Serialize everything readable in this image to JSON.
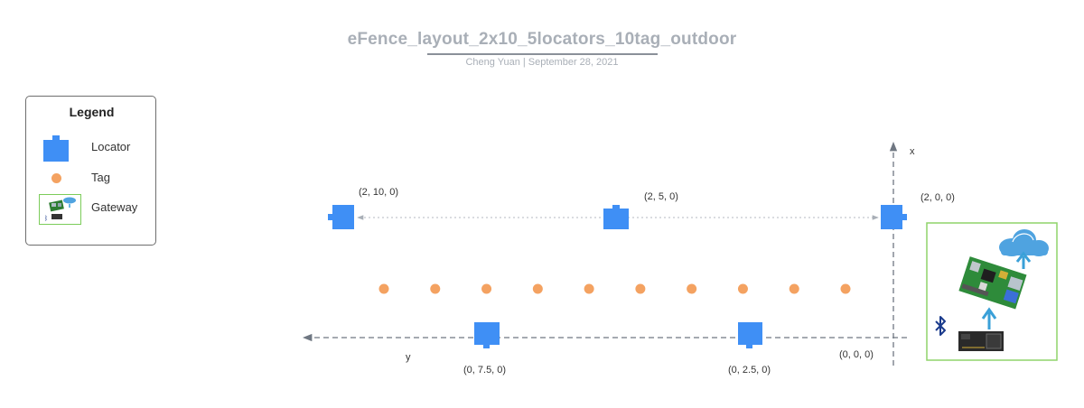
{
  "title": "eFence_layout_2x10_5locators_10tag_outdoor",
  "subtitle": "Cheng Yuan  |  September 28, 2021",
  "legend": {
    "title": "Legend",
    "items": [
      {
        "label": "Locator",
        "icon": "locator-icon"
      },
      {
        "label": "Tag",
        "icon": "tag-icon"
      },
      {
        "label": "Gateway",
        "icon": "gateway-icon"
      }
    ]
  },
  "axes": {
    "x_label": "x",
    "y_label": "y"
  },
  "locators": [
    {
      "coord": "(2, 10, 0)"
    },
    {
      "coord": "(2, 5, 0)"
    },
    {
      "coord": "(2, 0, 0)"
    },
    {
      "coord": "(0, 7.5, 0)"
    },
    {
      "coord": "(0, 2.5, 0)"
    }
  ],
  "origin": {
    "coord": "(0, 0, 0)"
  },
  "tags_count": 10,
  "colors": {
    "locator": "#3f8ff5",
    "tag": "#f4a261",
    "gateway_border": "#7ccc5a",
    "arrow": "#3aa0d8",
    "bluetooth": "#1a3a8c"
  }
}
